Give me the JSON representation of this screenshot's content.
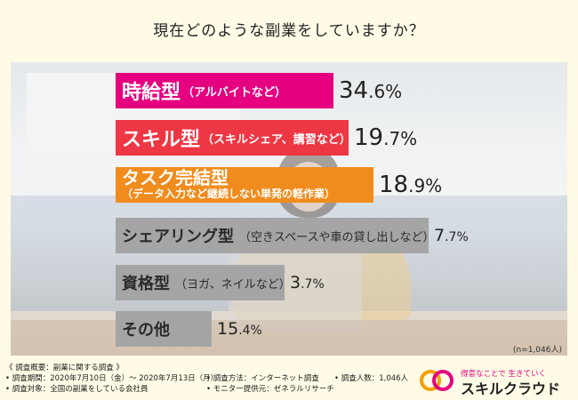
{
  "title": "現在どのような副業をしていますか？",
  "chart_data": {
    "type": "bar",
    "orientation": "horizontal",
    "title": "現在どのような副業をしていますか？",
    "unit": "%",
    "categories": [
      "時給型（アルバイトなど）",
      "スキル型（スキルシェア、講習など）",
      "タスク完結型（データ入力など継続しない単発の軽作業）",
      "シェアリング型（空きスペースや車の貸し出しなど）",
      "資格型（ヨガ、ネイルなど）",
      "その他"
    ],
    "values": [
      34.6,
      19.7,
      18.9,
      7.7,
      3.7,
      15.4
    ],
    "bars": [
      {
        "main": "時給型",
        "sub": "（アルバイトなど）",
        "int": "34",
        "dec": ".6%",
        "color": "#e5007f",
        "style": "inline"
      },
      {
        "main": "スキル型",
        "sub": "（スキルシェア、講習など）",
        "int": "19",
        "dec": ".7%",
        "color": "#ee3744",
        "style": "inline"
      },
      {
        "main": "タスク完結型",
        "sub": "（データ入力など継続しない単発の軽作業）",
        "int": "18",
        "dec": ".9%",
        "color": "#f08c1e",
        "style": "stack"
      },
      {
        "main": "シェアリング型",
        "sub": "（空きスペースや車の貸し出しなど）",
        "int": "7",
        "dec": ".7%",
        "color": "#a5a5a5",
        "style": "gray"
      },
      {
        "main": "資格型",
        "sub": "（ヨガ、ネイルなど）",
        "int": "3",
        "dec": ".7%",
        "color": "#a5a5a5",
        "style": "gray"
      },
      {
        "main": "その他",
        "sub": "",
        "int": "15",
        "dec": ".4%",
        "color": "#a5a5a5",
        "style": "gray"
      }
    ],
    "xlim": [
      0,
      34.6
    ]
  },
  "sample_note": "(n=1,046人)",
  "footer": {
    "heading": "《 調査概要：副業に関する調査 》",
    "items": [
      "• 調査期間：2020年7月10日（金）～ 2020年7月13日（月）",
      "• 調査方法：インターネット調査",
      "• 調査人数：1,046人",
      "• 調査対象：全国の副業をしている会社員",
      "• モニター提供元：ゼネラルリサーチ"
    ]
  },
  "logo": {
    "tagline": "得意なことで 生きていく",
    "name": "スキルクラウド",
    "colors": [
      "#f5a000",
      "#e5007f"
    ]
  }
}
